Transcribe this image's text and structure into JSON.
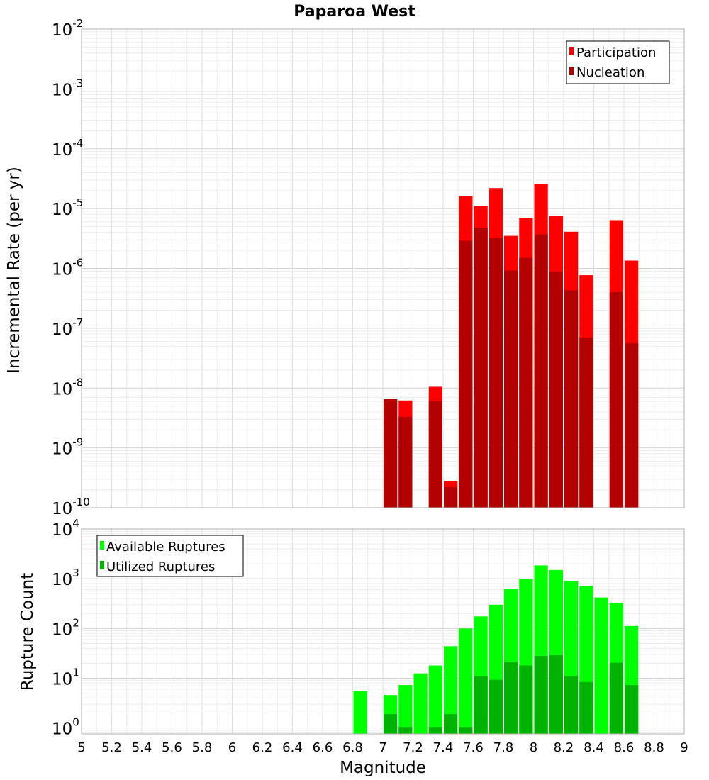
{
  "chart_data": [
    {
      "type": "bar",
      "title": "Paparoa West",
      "xlabel": "",
      "ylabel": "Incremental Rate (per yr)",
      "yscale": "log",
      "ylim": [
        1e-10,
        0.01
      ],
      "xlim": [
        5,
        9
      ],
      "grid": true,
      "legend_position": "top-right",
      "y_ticks": [
        {
          "base": "10",
          "exp": "-2",
          "value": 0.01
        },
        {
          "base": "10",
          "exp": "-3",
          "value": 0.001
        },
        {
          "base": "10",
          "exp": "-4",
          "value": 0.0001
        },
        {
          "base": "10",
          "exp": "-5",
          "value": 1e-05
        },
        {
          "base": "10",
          "exp": "-6",
          "value": 1e-06
        },
        {
          "base": "10",
          "exp": "-7",
          "value": 1e-07
        },
        {
          "base": "10",
          "exp": "-8",
          "value": 1e-08
        },
        {
          "base": "10",
          "exp": "-9",
          "value": 1e-09
        },
        {
          "base": "10",
          "exp": "-10",
          "value": 1e-10
        }
      ],
      "x": [
        7.05,
        7.15,
        7.35,
        7.45,
        7.55,
        7.65,
        7.75,
        7.85,
        7.95,
        8.05,
        8.15,
        8.25,
        8.35,
        8.55,
        8.65
      ],
      "series": [
        {
          "name": "Participation",
          "color": "#ff0000",
          "values": [
            6.5e-09,
            6.2e-09,
            1.05e-08,
            2.8e-10,
            1.6e-05,
            1.1e-05,
            2.2e-05,
            3.5e-06,
            7e-06,
            2.6e-05,
            7.5e-06,
            4.1e-06,
            7.7e-07,
            6.4e-06,
            1.35e-06
          ]
        },
        {
          "name": "Nucleation",
          "color": "#b30000",
          "values": [
            6.5e-09,
            3.3e-09,
            6e-09,
            2.2e-10,
            2.9e-06,
            4.8e-06,
            3.2e-06,
            9.2e-07,
            1.5e-06,
            3.7e-06,
            8.9e-07,
            4.3e-07,
            7e-08,
            4e-07,
            5.6e-08
          ]
        }
      ]
    },
    {
      "type": "bar",
      "title": "",
      "xlabel": "Magnitude",
      "ylabel": "Rupture Count",
      "yscale": "log",
      "ylim": [
        0.76,
        10000
      ],
      "xlim": [
        5,
        9
      ],
      "grid": true,
      "legend_position": "top-left",
      "y_ticks": [
        {
          "base": "10",
          "exp": "4",
          "value": 10000
        },
        {
          "base": "10",
          "exp": "3",
          "value": 1000
        },
        {
          "base": "10",
          "exp": "2",
          "value": 100
        },
        {
          "base": "10",
          "exp": "1",
          "value": 10
        },
        {
          "base": "10",
          "exp": "0",
          "value": 1
        }
      ],
      "x_ticks": [
        "5",
        "5.2",
        "5.4",
        "5.6",
        "5.8",
        "6",
        "6.2",
        "6.4",
        "6.6",
        "6.8",
        "7",
        "7.2",
        "7.4",
        "7.6",
        "7.8",
        "8",
        "8.2",
        "8.4",
        "8.6",
        "8.8",
        "9"
      ],
      "x": [
        6.85,
        7.05,
        7.15,
        7.25,
        7.35,
        7.45,
        7.55,
        7.65,
        7.75,
        7.85,
        7.95,
        8.05,
        8.15,
        8.25,
        8.35,
        8.45,
        8.55,
        8.65
      ],
      "series": [
        {
          "name": "Available Ruptures",
          "color": "#00ff00",
          "values": [
            5.5,
            4.6,
            7.3,
            12.5,
            18,
            44,
            100,
            175,
            300,
            620,
            1000,
            1850,
            1500,
            900,
            720,
            420,
            330,
            112
          ]
        },
        {
          "name": "Utilized Ruptures",
          "color": "#00b300",
          "values": [
            null,
            1.9,
            1.05,
            null,
            1.05,
            1.9,
            1.05,
            11,
            9.3,
            21.5,
            18,
            28,
            29,
            11,
            8.4,
            null,
            20.5,
            7.3
          ]
        }
      ]
    }
  ]
}
